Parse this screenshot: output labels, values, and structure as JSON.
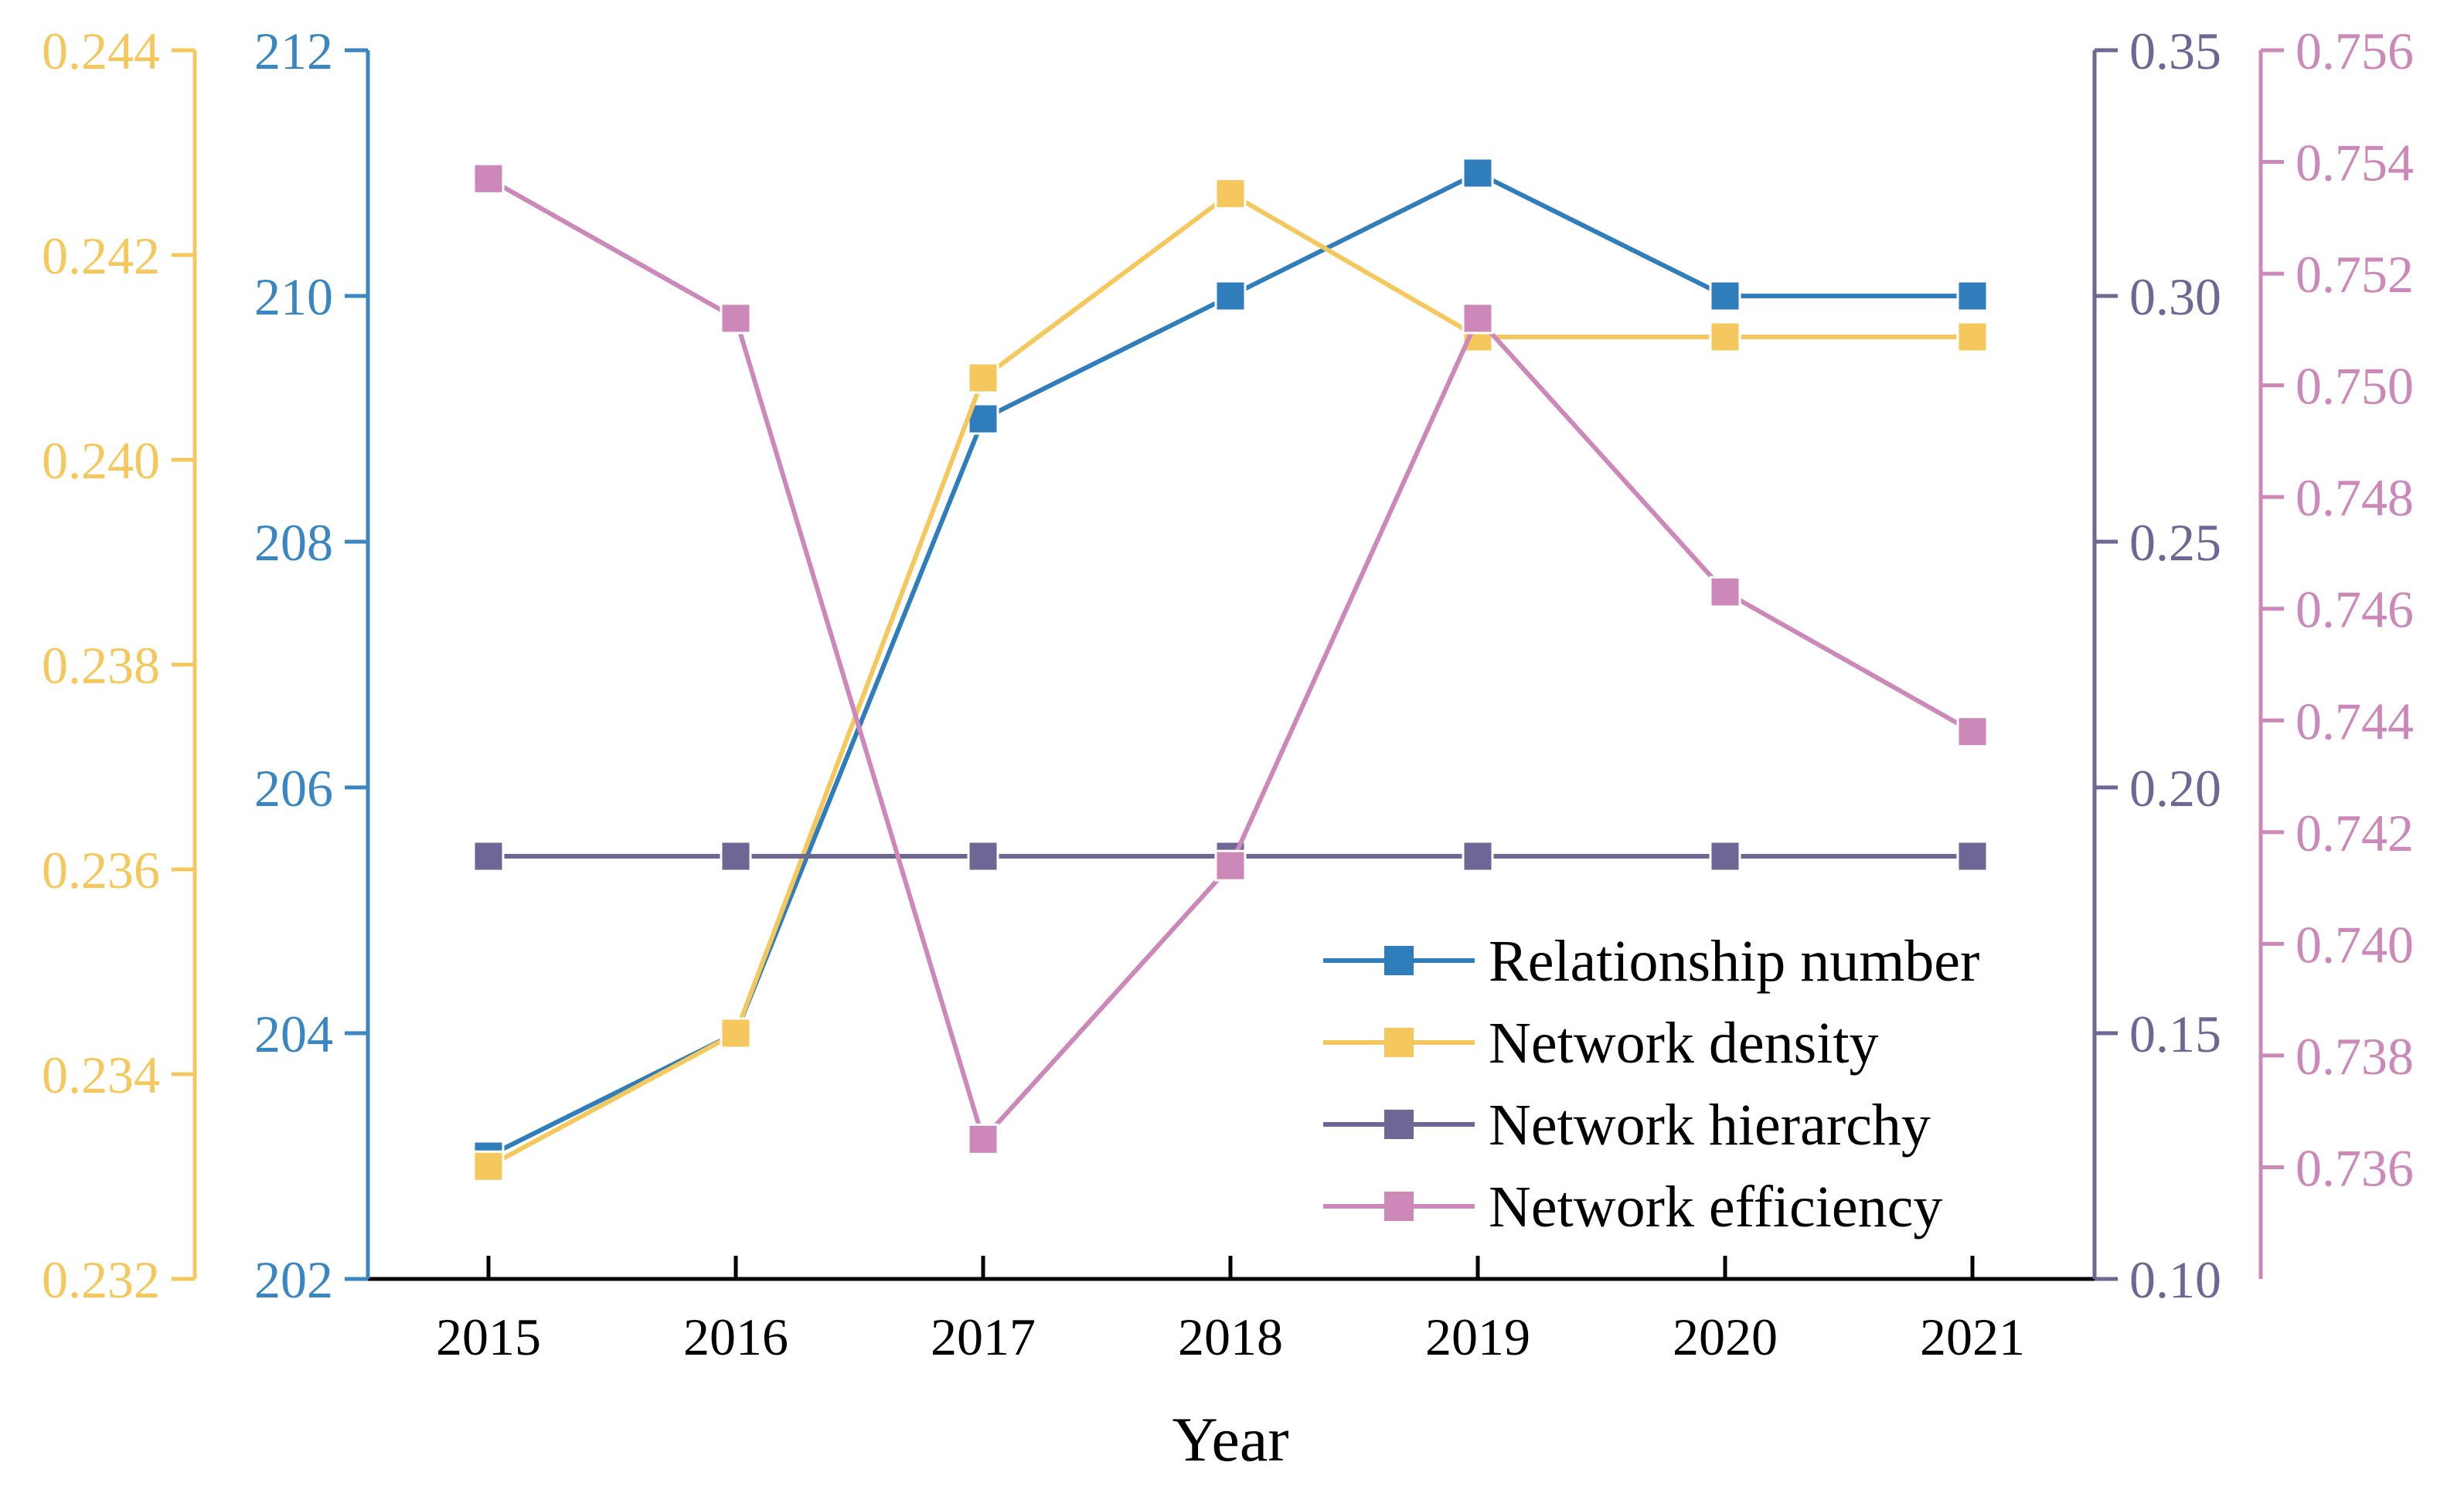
{
  "chart_data": {
    "type": "line",
    "xlabel": "Year",
    "categories": [
      "2015",
      "2016",
      "2017",
      "2018",
      "2019",
      "2020",
      "2021"
    ],
    "axes": [
      {
        "id": "density",
        "side": "left-outer",
        "color": "#F5C85E",
        "range": [
          0.232,
          0.244
        ],
        "ticks": [
          "0.232",
          "0.234",
          "0.236",
          "0.238",
          "0.240",
          "0.242",
          "0.244"
        ]
      },
      {
        "id": "number",
        "side": "left-inner",
        "color": "#3A86C0",
        "range": [
          202,
          212
        ],
        "ticks": [
          "202",
          "204",
          "206",
          "208",
          "210",
          "212"
        ]
      },
      {
        "id": "hierarchy",
        "side": "right-inner",
        "color": "#6E6695",
        "range": [
          0.1,
          0.35
        ],
        "ticks": [
          "0.10",
          "0.15",
          "0.20",
          "0.25",
          "0.30",
          "0.35"
        ]
      },
      {
        "id": "efficiency",
        "side": "right-outer",
        "color": "#CB88B8",
        "range": [
          0.734,
          0.756
        ],
        "ticks": [
          "0.736",
          "0.738",
          "0.740",
          "0.742",
          "0.744",
          "0.746",
          "0.748",
          "0.750",
          "0.752",
          "0.754",
          "0.756"
        ]
      }
    ],
    "series": [
      {
        "name": "Relationship number",
        "axis": "number",
        "color": "#2F7DBB",
        "values": [
          203,
          204,
          209,
          210,
          211,
          210,
          210
        ]
      },
      {
        "name": "Network density",
        "axis": "density",
        "color": "#F5C85E",
        "values": [
          0.2331,
          0.2344,
          0.2408,
          0.2426,
          0.2412,
          0.2412,
          0.2412
        ]
      },
      {
        "name": "Network hierarchy",
        "axis": "hierarchy",
        "color": "#6E6695",
        "values": [
          0.186,
          0.186,
          0.186,
          0.186,
          0.186,
          0.186,
          0.186
        ]
      },
      {
        "name": "Network efficiency",
        "axis": "efficiency",
        "color": "#CB88B8",
        "values": [
          0.7537,
          0.7512,
          0.7365,
          0.7414,
          0.7512,
          0.7463,
          0.7438
        ]
      }
    ],
    "legend": "bottom-right",
    "grid": false
  }
}
